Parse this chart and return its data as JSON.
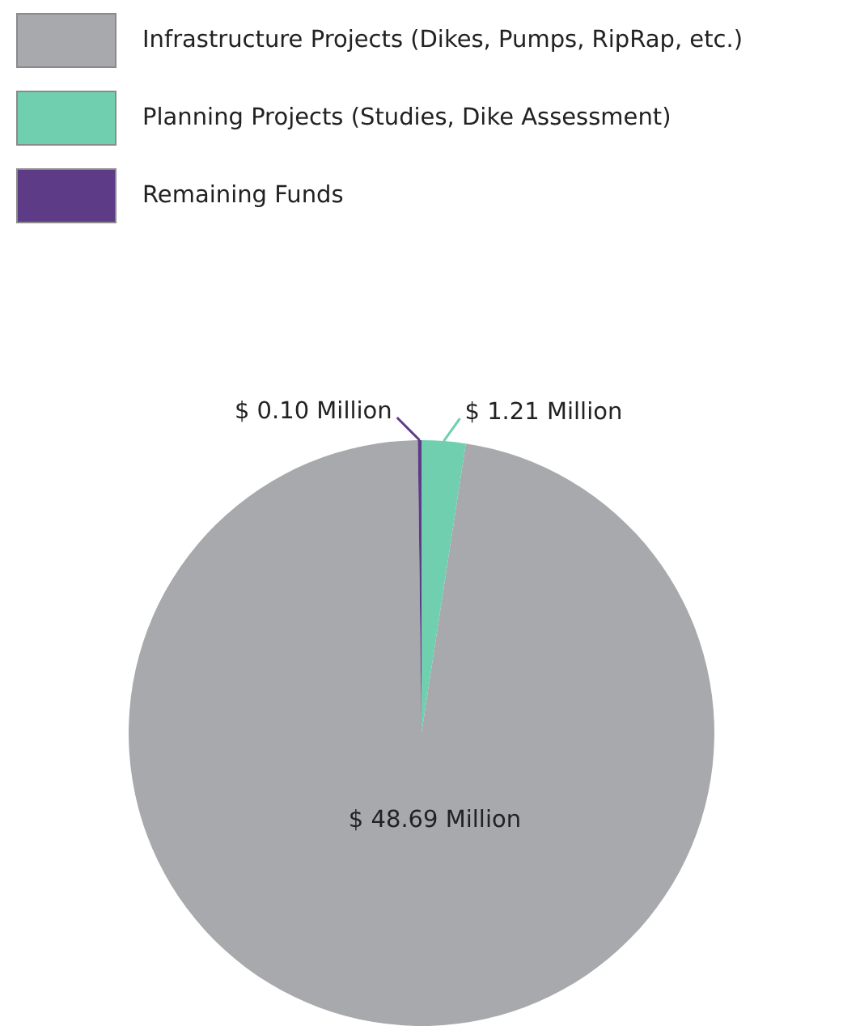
{
  "chart_data": {
    "type": "pie",
    "categories": [
      "Planning Projects (Studies, Dike Assessment)",
      "Infrastructure Projects (Dikes, Pumps, RipRap, etc.)",
      "Remaining Funds"
    ],
    "values": [
      1.21,
      48.69,
      0.1
    ],
    "colors": [
      "#6fcfae",
      "#a7a9ac",
      "#5e3b86"
    ],
    "value_labels": [
      "$ 1.21 Million",
      "$ 48.69 Million",
      "$ 0.10 Million"
    ],
    "legend": "top left"
  }
}
